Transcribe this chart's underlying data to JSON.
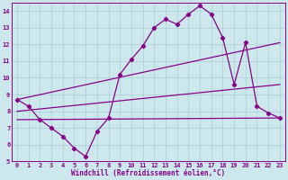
{
  "xlabel": "Windchill (Refroidissement éolien,°C)",
  "xlim": [
    -0.5,
    23.5
  ],
  "ylim": [
    5,
    14.5
  ],
  "yticks": [
    5,
    6,
    7,
    8,
    9,
    10,
    11,
    12,
    13,
    14
  ],
  "xticks": [
    0,
    1,
    2,
    3,
    4,
    5,
    6,
    7,
    8,
    9,
    10,
    11,
    12,
    13,
    14,
    15,
    16,
    17,
    18,
    19,
    20,
    21,
    22,
    23
  ],
  "bg_color": "#cce8ed",
  "grid_color": "#aacdd6",
  "line_color": "#880088",
  "series_main": {
    "x": [
      0,
      1,
      2,
      3,
      4,
      5,
      6,
      7,
      8,
      9,
      10,
      11,
      12,
      13,
      14,
      15,
      16,
      17,
      18,
      19,
      20,
      21,
      22,
      23
    ],
    "y": [
      8.7,
      8.3,
      7.5,
      7.0,
      6.5,
      5.8,
      5.3,
      6.8,
      7.6,
      10.2,
      11.1,
      11.9,
      13.0,
      13.5,
      13.2,
      13.8,
      14.3,
      13.8,
      12.4,
      9.6,
      12.1,
      8.3,
      7.9,
      7.6
    ]
  },
  "series_line1": {
    "x": [
      0,
      23
    ],
    "y": [
      8.7,
      12.1
    ]
  },
  "series_line2": {
    "x": [
      0,
      23
    ],
    "y": [
      8.0,
      9.6
    ]
  },
  "series_line3": {
    "x": [
      0,
      23
    ],
    "y": [
      7.5,
      7.6
    ]
  }
}
